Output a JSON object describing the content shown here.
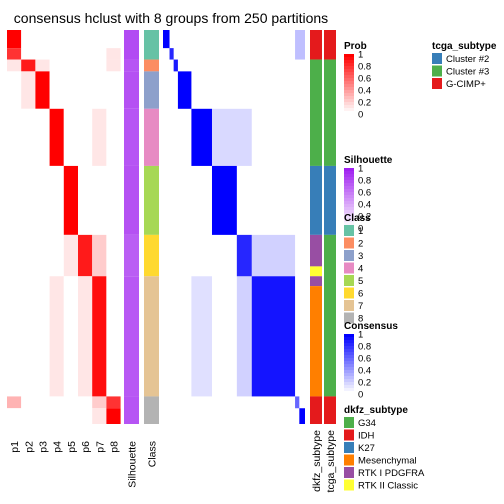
{
  "chart_data": {
    "type": "heatmap",
    "title": "consensus hclust with 8 groups from 250 partitions",
    "membership_columns": {
      "labels": [
        "p1",
        "p2",
        "p3",
        "p4",
        "p5",
        "p6",
        "p7",
        "p8"
      ],
      "blocks": [
        {
          "label": "1",
          "rows": [
            0,
            0.046
          ],
          "values": [
            1,
            0,
            0,
            0,
            0,
            0,
            0,
            0
          ]
        },
        {
          "label": "1",
          "rows": [
            0.046,
            0.075
          ],
          "values": [
            0.8,
            0,
            0,
            0,
            0,
            0,
            0,
            0.1
          ]
        },
        {
          "label": "2",
          "rows": [
            0.075,
            0.105
          ],
          "values": [
            0.1,
            0.9,
            0.1,
            0,
            0,
            0,
            0,
            0.1
          ]
        },
        {
          "label": "3",
          "rows": [
            0.105,
            0.2
          ],
          "values": [
            0,
            0.1,
            1,
            0,
            0,
            0,
            0,
            0
          ]
        },
        {
          "label": "4",
          "rows": [
            0.2,
            0.345
          ],
          "values": [
            0,
            0,
            0,
            1,
            0,
            0,
            0.1,
            0
          ]
        },
        {
          "label": "5",
          "rows": [
            0.345,
            0.52
          ],
          "values": [
            0,
            0,
            0,
            0,
            1,
            0,
            0,
            0
          ]
        },
        {
          "label": "6",
          "rows": [
            0.52,
            0.625
          ],
          "values": [
            0,
            0,
            0,
            0,
            0.1,
            0.9,
            0.2,
            0
          ]
        },
        {
          "label": "7",
          "rows": [
            0.625,
            0.93
          ],
          "values": [
            0,
            0,
            0,
            0.1,
            0,
            0.1,
            0.95,
            0
          ]
        },
        {
          "label": "8",
          "rows": [
            0.93,
            0.96
          ],
          "values": [
            0.3,
            0,
            0,
            0,
            0,
            0,
            0.2,
            0.8
          ]
        },
        {
          "label": "8",
          "rows": [
            0.96,
            1.0
          ],
          "values": [
            0,
            0,
            0,
            0,
            0,
            0,
            0.1,
            1
          ]
        }
      ]
    },
    "silhouette_label": "Silhouette",
    "class_label": "Class",
    "classes": [
      {
        "label": "1",
        "rows": [
          0,
          0.075
        ],
        "silhouette": 0.95
      },
      {
        "label": "2",
        "rows": [
          0.075,
          0.105
        ],
        "silhouette": 0.9
      },
      {
        "label": "3",
        "rows": [
          0.105,
          0.2
        ],
        "silhouette": 0.92
      },
      {
        "label": "4",
        "rows": [
          0.2,
          0.345
        ],
        "silhouette": 0.9
      },
      {
        "label": "5",
        "rows": [
          0.345,
          0.52
        ],
        "silhouette": 0.92
      },
      {
        "label": "6",
        "rows": [
          0.52,
          0.625
        ],
        "silhouette": 0.85
      },
      {
        "label": "7",
        "rows": [
          0.625,
          0.93
        ],
        "silhouette": 0.88
      },
      {
        "label": "8",
        "rows": [
          0.93,
          1.0
        ],
        "silhouette": 0.9
      }
    ],
    "consensus": {
      "blocks": [
        {
          "rows": [
            0,
            0.046
          ],
          "value": 1
        },
        {
          "rows": [
            0.046,
            0.075
          ],
          "value": 0.85
        },
        {
          "rows": [
            0.075,
            0.105
          ],
          "value": 0.9
        },
        {
          "rows": [
            0.105,
            0.2
          ],
          "value": 1
        },
        {
          "rows": [
            0.2,
            0.345
          ],
          "value": 1
        },
        {
          "rows": [
            0.345,
            0.52
          ],
          "value": 1
        },
        {
          "rows": [
            0.52,
            0.625
          ],
          "value": 0.85
        },
        {
          "rows": [
            0.625,
            0.93
          ],
          "value": 0.92
        },
        {
          "rows": [
            0.93,
            0.96
          ],
          "value": 0.6
        },
        {
          "rows": [
            0.96,
            1.0
          ],
          "value": 1
        }
      ],
      "off_diagonal": [
        {
          "rows": [
            0.2,
            0.345
          ],
          "cols": [
            0.345,
            0.625
          ],
          "value": 0.15
        },
        {
          "rows": [
            0.52,
            0.625
          ],
          "cols": [
            0.625,
            0.93
          ],
          "value": 0.18
        },
        {
          "rows": [
            0.625,
            0.93
          ],
          "cols": [
            0.52,
            0.625
          ],
          "value": 0.18
        },
        {
          "rows": [
            0.625,
            0.93
          ],
          "cols": [
            0.2,
            0.345
          ],
          "value": 0.12
        },
        {
          "rows": [
            0.0,
            0.075
          ],
          "cols": [
            0.93,
            1.0
          ],
          "value": 0.25
        }
      ]
    },
    "dkfz_subtype": {
      "label": "dkfz_subtype",
      "segments": [
        {
          "rows": [
            0,
            0.075
          ],
          "category": "IDH"
        },
        {
          "rows": [
            0.075,
            0.345
          ],
          "category": "G34"
        },
        {
          "rows": [
            0.345,
            0.52
          ],
          "category": "K27"
        },
        {
          "rows": [
            0.52,
            0.6
          ],
          "category": "RTK I PDGFRA"
        },
        {
          "rows": [
            0.6,
            0.625
          ],
          "category": "RTK II Classic"
        },
        {
          "rows": [
            0.625,
            0.65
          ],
          "category": "RTK I PDGFRA"
        },
        {
          "rows": [
            0.65,
            0.93
          ],
          "category": "Mesenchymal"
        },
        {
          "rows": [
            0.93,
            1.0
          ],
          "category": "IDH"
        }
      ]
    },
    "tcga_subtype": {
      "label": "tcga_subtype",
      "segments": [
        {
          "rows": [
            0,
            0.075
          ],
          "category": "G-CIMP+"
        },
        {
          "rows": [
            0.075,
            0.345
          ],
          "category": "Cluster #3"
        },
        {
          "rows": [
            0.345,
            0.52
          ],
          "category": "Cluster #2"
        },
        {
          "rows": [
            0.52,
            0.93
          ],
          "category": "Cluster #3"
        },
        {
          "rows": [
            0.93,
            1.0
          ],
          "category": "G-CIMP+"
        }
      ]
    },
    "legends": {
      "prob": {
        "title": "Prob",
        "ticks": [
          "1",
          "0.8",
          "0.6",
          "0.4",
          "0.2",
          "0"
        ]
      },
      "silhouette": {
        "title": "Silhouette",
        "ticks": [
          "1",
          "0.8",
          "0.6",
          "0.4",
          "0.2",
          "0"
        ]
      },
      "class": {
        "title": "Class",
        "items": [
          "1",
          "2",
          "3",
          "4",
          "5",
          "6",
          "7",
          "8"
        ]
      },
      "consensus": {
        "title": "Consensus",
        "ticks": [
          "1",
          "0.8",
          "0.6",
          "0.4",
          "0.2",
          "0"
        ]
      },
      "dkfz": {
        "title": "dkfz_subtype",
        "items": [
          "G34",
          "IDH",
          "K27",
          "Mesenchymal",
          "RTK I PDGFRA",
          "RTK II Classic"
        ]
      },
      "tcga": {
        "title": "tcga_subtype",
        "items": [
          "Cluster #2",
          "Cluster #3",
          "G-CIMP+"
        ]
      }
    },
    "colors": {
      "prob_high": "#ff0000",
      "silhouette_high": "#a020f0",
      "consensus_high": "#0000ff",
      "class": {
        "1": "#66c2a5",
        "2": "#fc8d62",
        "3": "#8da0cb",
        "4": "#e78ac3",
        "5": "#a6d854",
        "6": "#ffd92f",
        "7": "#e5c494",
        "8": "#b3b3b3"
      },
      "dkfz": {
        "G34": "#4daf4a",
        "IDH": "#e41a1c",
        "K27": "#377eb8",
        "Mesenchymal": "#ff7f00",
        "RTK I PDGFRA": "#984ea3",
        "RTK II Classic": "#ffff33"
      },
      "tcga": {
        "Cluster #2": "#377eb8",
        "Cluster #3": "#4daf4a",
        "G-CIMP+": "#e41a1c"
      }
    }
  }
}
